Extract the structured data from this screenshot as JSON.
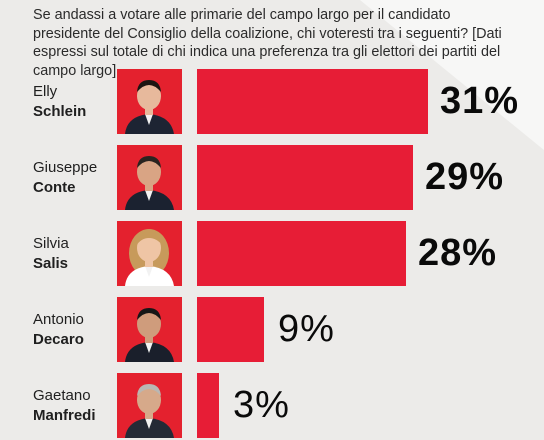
{
  "header": {
    "question": "Se andassi a votare alle primarie del campo largo per il candidato presidente del Consiglio della coalizione, chi voteresti tra i seguenti? [Dati espressi sul totale di chi indica una preferenza tra gli elettori dei partiti del campo largo]"
  },
  "colors": {
    "bar": "#e71d36",
    "photo_bg": "#e4212e",
    "background": "#ecebe9"
  },
  "chart_data": {
    "type": "bar",
    "orientation": "horizontal",
    "title": "",
    "xlabel": "",
    "ylabel": "",
    "categories": [
      "Elly Schlein",
      "Giuseppe Conte",
      "Silvia Salis",
      "Antonio Decaro",
      "Gaetano Manfredi"
    ],
    "values": [
      31,
      29,
      28,
      9,
      3
    ],
    "unit": "%",
    "ylim": [
      0,
      31
    ],
    "grid": false,
    "legend": "none",
    "candidates": [
      {
        "first_name": "Elly",
        "last_name": "Schlein",
        "value": 31,
        "label": "31%",
        "bold_label": true
      },
      {
        "first_name": "Giuseppe",
        "last_name": "Conte",
        "value": 29,
        "label": "29%",
        "bold_label": true
      },
      {
        "first_name": "Silvia",
        "last_name": "Salis",
        "value": 28,
        "label": "28%",
        "bold_label": true
      },
      {
        "first_name": "Antonio",
        "last_name": "Decaro",
        "value": 9,
        "label": "9%",
        "bold_label": false
      },
      {
        "first_name": "Gaetano",
        "last_name": "Manfredi",
        "value": 3,
        "label": "3%",
        "bold_label": false
      }
    ]
  }
}
